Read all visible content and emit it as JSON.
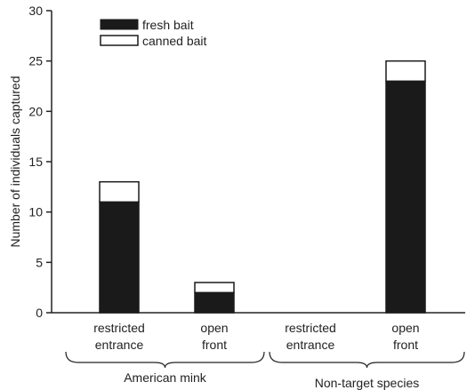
{
  "chart_data": {
    "type": "bar",
    "stacked": true,
    "title": "",
    "xlabel": "",
    "ylabel": "Number of individuals captured",
    "ylim": [
      0,
      30
    ],
    "yticks": [
      0,
      5,
      10,
      15,
      20,
      25,
      30
    ],
    "grid": false,
    "legend_position": "top-left",
    "categories": [
      "restricted entrance (American mink)",
      "open front (American mink)",
      "restricted entrance (Non-target species)",
      "open front (Non-target species)"
    ],
    "category_labels": [
      [
        "restricted",
        "entrance"
      ],
      [
        "open",
        "front"
      ],
      [
        "restricted",
        "entrance"
      ],
      [
        "open",
        "front"
      ]
    ],
    "groups": [
      {
        "label": "American mink",
        "categories": [
          0,
          1
        ]
      },
      {
        "label": "Non-target species",
        "categories": [
          2,
          3
        ]
      }
    ],
    "series": [
      {
        "name": "fresh bait",
        "color": "#1a1a1a",
        "values": [
          11,
          2,
          0,
          23
        ]
      },
      {
        "name": "canned bait",
        "color": "#ffffff",
        "values": [
          2,
          1,
          0,
          2
        ]
      }
    ]
  }
}
